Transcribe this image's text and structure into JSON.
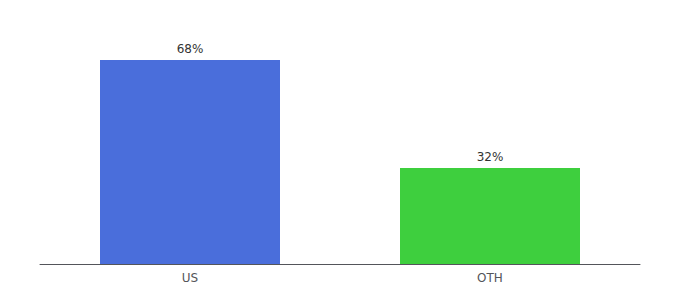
{
  "chart_data": {
    "type": "bar",
    "categories": [
      "US",
      "OTH"
    ],
    "values": [
      68,
      32
    ],
    "value_labels": [
      "68%",
      "32%"
    ],
    "colors": [
      "#4a6edb",
      "#3ecf3e"
    ],
    "ylim": [
      0,
      78
    ],
    "data_labels": true,
    "tick_labels": "x",
    "grid": false
  }
}
